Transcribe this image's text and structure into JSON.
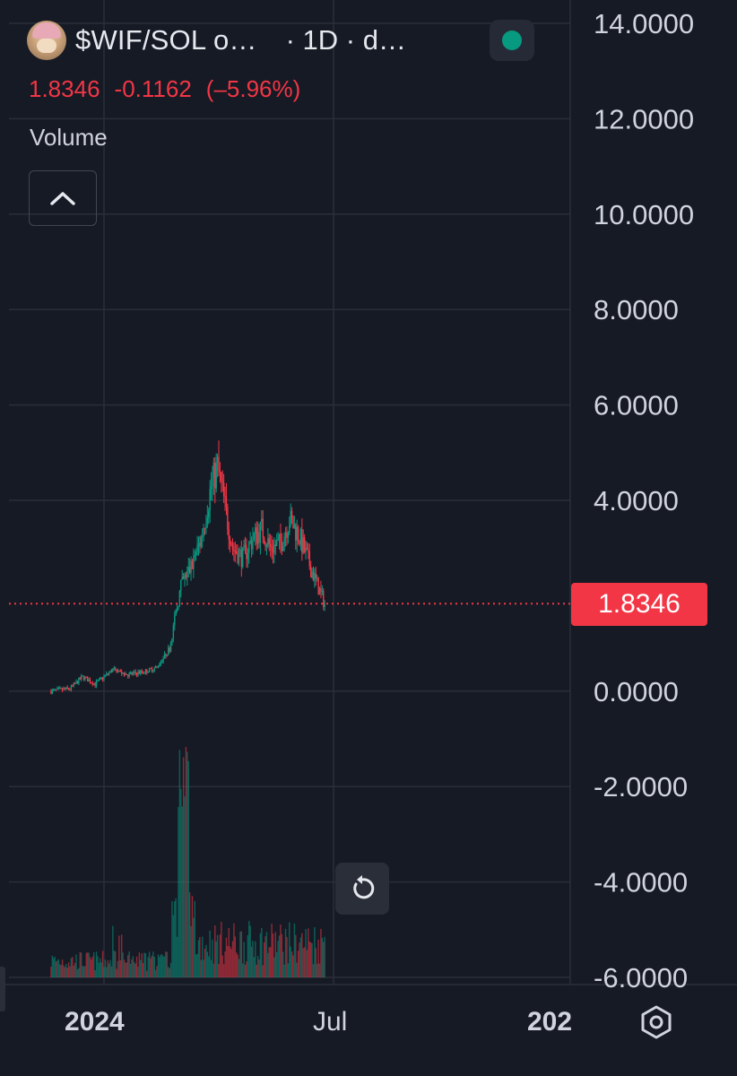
{
  "header": {
    "symbol": "$WIF/SOL o…",
    "interval": "· 1D · d…",
    "last_price": "1.8346",
    "change": "-0.1162",
    "change_pct": "(–5.96%)",
    "volume_label": "Volume"
  },
  "price_badge": "1.8346",
  "icons": {
    "avatar": "dogwifhat-avatar-icon",
    "status": "market-status-dot-icon",
    "collapse": "chevron-up-icon",
    "reset": "reset-chart-icon",
    "settings": "hexagon-settings-icon"
  },
  "colors": {
    "background": "#161a25",
    "grid": "#2a2e39",
    "up": "#089981",
    "down": "#f23645",
    "text": "#d1d4dc",
    "status": "#089981"
  },
  "chart_data": {
    "type": "candlestick",
    "y_ticks": [
      "14.0000",
      "12.0000",
      "10.0000",
      "8.0000",
      "6.0000",
      "4.0000",
      "0.0000",
      "-2.0000",
      "-4.0000",
      "-6.0000"
    ],
    "ylim": [
      -6,
      14
    ],
    "x_ticks": [
      "2024",
      "Jul",
      "202"
    ],
    "last_price_line": 1.8346,
    "price_series": [
      {
        "x": "2023-11-20",
        "y": 0.0
      },
      {
        "x": "2023-12-05",
        "y": 0.05
      },
      {
        "x": "2023-12-15",
        "y": 0.3
      },
      {
        "x": "2023-12-25",
        "y": 0.15
      },
      {
        "x": "2024-01-08",
        "y": 0.45
      },
      {
        "x": "2024-01-20",
        "y": 0.35
      },
      {
        "x": "2024-02-01",
        "y": 0.4
      },
      {
        "x": "2024-02-12",
        "y": 0.5
      },
      {
        "x": "2024-02-22",
        "y": 0.9
      },
      {
        "x": "2024-03-02",
        "y": 2.2
      },
      {
        "x": "2024-03-10",
        "y": 2.6
      },
      {
        "x": "2024-03-18",
        "y": 3.2
      },
      {
        "x": "2024-03-26",
        "y": 4.3
      },
      {
        "x": "2024-03-31",
        "y": 4.7
      },
      {
        "x": "2024-04-05",
        "y": 4.0
      },
      {
        "x": "2024-04-12",
        "y": 3.0
      },
      {
        "x": "2024-04-20",
        "y": 2.8
      },
      {
        "x": "2024-04-28",
        "y": 3.2
      },
      {
        "x": "2024-05-05",
        "y": 3.4
      },
      {
        "x": "2024-05-12",
        "y": 3.0
      },
      {
        "x": "2024-05-20",
        "y": 3.1
      },
      {
        "x": "2024-05-27",
        "y": 3.6
      },
      {
        "x": "2024-06-03",
        "y": 3.3
      },
      {
        "x": "2024-06-10",
        "y": 2.8
      },
      {
        "x": "2024-06-17",
        "y": 2.3
      },
      {
        "x": "2024-06-24",
        "y": 1.83
      }
    ],
    "volume_note": "volume histogram below price, relative scale, peak near early March 2024"
  }
}
